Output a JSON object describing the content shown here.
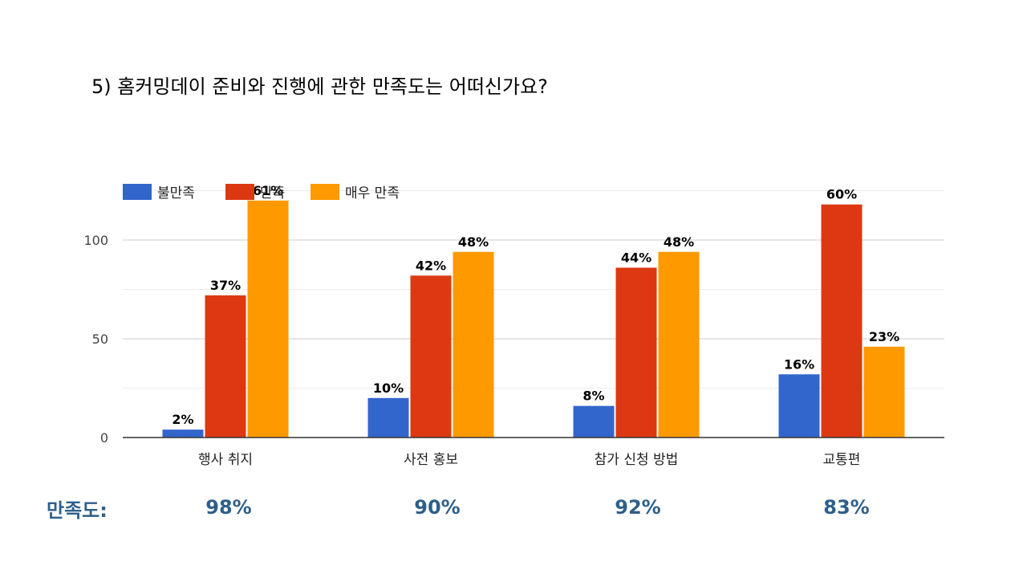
{
  "slide": {
    "title": "5) 홈커밍데이 준비와 진행에 관한 만족도는 어떠신가요?"
  },
  "chart_data": {
    "type": "bar",
    "categories": [
      "행사 취지",
      "사전 홍보",
      "참가 신청 방법",
      "교통편"
    ],
    "series": [
      {
        "name": "불만족",
        "color": "#3366cc",
        "values": [
          4,
          20,
          16,
          32
        ],
        "labels": [
          "2%",
          "10%",
          "8%",
          "16%"
        ]
      },
      {
        "name": "만족",
        "color": "#dc3912",
        "values": [
          72,
          82,
          86,
          118
        ],
        "labels": [
          "37%",
          "42%",
          "44%",
          "60%"
        ]
      },
      {
        "name": "매우 만족",
        "color": "#ff9900",
        "values": [
          120,
          94,
          94,
          46
        ],
        "labels": [
          "61%",
          "48%",
          "48%",
          "23%"
        ]
      }
    ],
    "yticks": [
      0,
      50,
      100
    ],
    "ylim": [
      0,
      125
    ],
    "grid": true,
    "legend_position": "top-left"
  },
  "satisfaction": {
    "label": "만족도:",
    "values": [
      "98%",
      "90%",
      "92%",
      "83%"
    ]
  }
}
